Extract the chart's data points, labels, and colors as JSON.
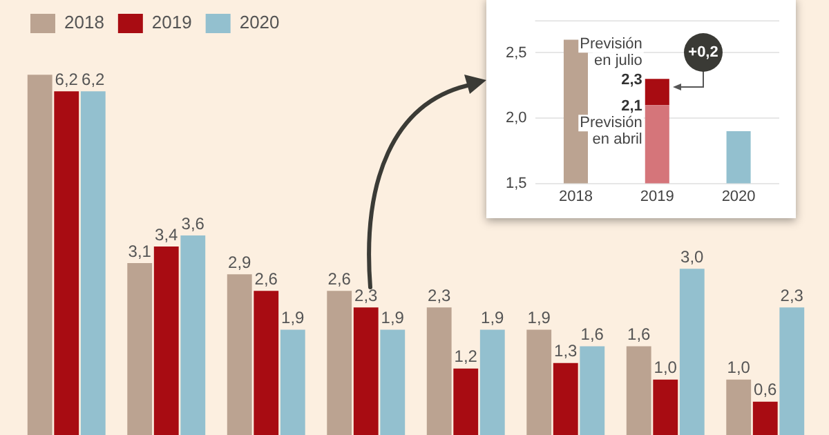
{
  "chart_data": [
    {
      "type": "bar",
      "categories": [
        null,
        null,
        null,
        null,
        null,
        null,
        null,
        null
      ],
      "legend": "top left",
      "series": [
        {
          "name": "2018",
          "color": "#bba391",
          "values": [
            6.5,
            3.1,
            2.9,
            2.6,
            2.3,
            1.9,
            1.6,
            1.0
          ],
          "value_labels": [
            null,
            "3,1",
            "2,9",
            "2,6",
            "2,3",
            "1,9",
            "1,6",
            "1,0"
          ]
        },
        {
          "name": "2019",
          "color": "#a80c12",
          "values": [
            6.2,
            3.4,
            2.6,
            2.3,
            1.2,
            1.3,
            1.0,
            0.6
          ],
          "value_labels": [
            "6,2",
            "3,4",
            "2,6",
            "2,3",
            "1,2",
            "1,3",
            "1,0",
            "0,6"
          ]
        },
        {
          "name": "2020",
          "color": "#93c0cf",
          "values": [
            6.2,
            3.6,
            1.9,
            1.9,
            1.9,
            1.6,
            3.0,
            2.3
          ],
          "value_labels": [
            "6,2",
            "3,6",
            "1,9",
            "1,9",
            "1,9",
            "1,6",
            "3,0",
            "2,3"
          ]
        }
      ]
    },
    {
      "type": "bar",
      "categories": [
        "2018",
        "2019",
        "2020"
      ],
      "grid": "y",
      "ylim": [
        1.5,
        2.75
      ],
      "yticks": [
        {
          "value": 1.5,
          "label": "1,5"
        },
        {
          "value": 2.0,
          "label": "2,0"
        },
        {
          "value": 2.5,
          "label": "2,5"
        }
      ],
      "series": [
        {
          "colors": [
            "#bba391",
            "#d5757a",
            "#93c0cf"
          ],
          "values": [
            2.6,
            2.1,
            1.9
          ],
          "value_labels": [
            null,
            "2,1",
            null
          ]
        },
        {
          "color": "#a80c12",
          "base": [
            null,
            2.1,
            null
          ],
          "values": [
            null,
            0.2,
            null
          ],
          "value_labels": [
            null,
            "2,3",
            null
          ]
        }
      ],
      "annotations": [
        {
          "text": "Previsión en julio",
          "x": "2019",
          "y": 2.3
        },
        {
          "text": "Previsión en abril",
          "x": "2019",
          "y": 2.1
        },
        "+0,2"
      ]
    }
  ]
}
